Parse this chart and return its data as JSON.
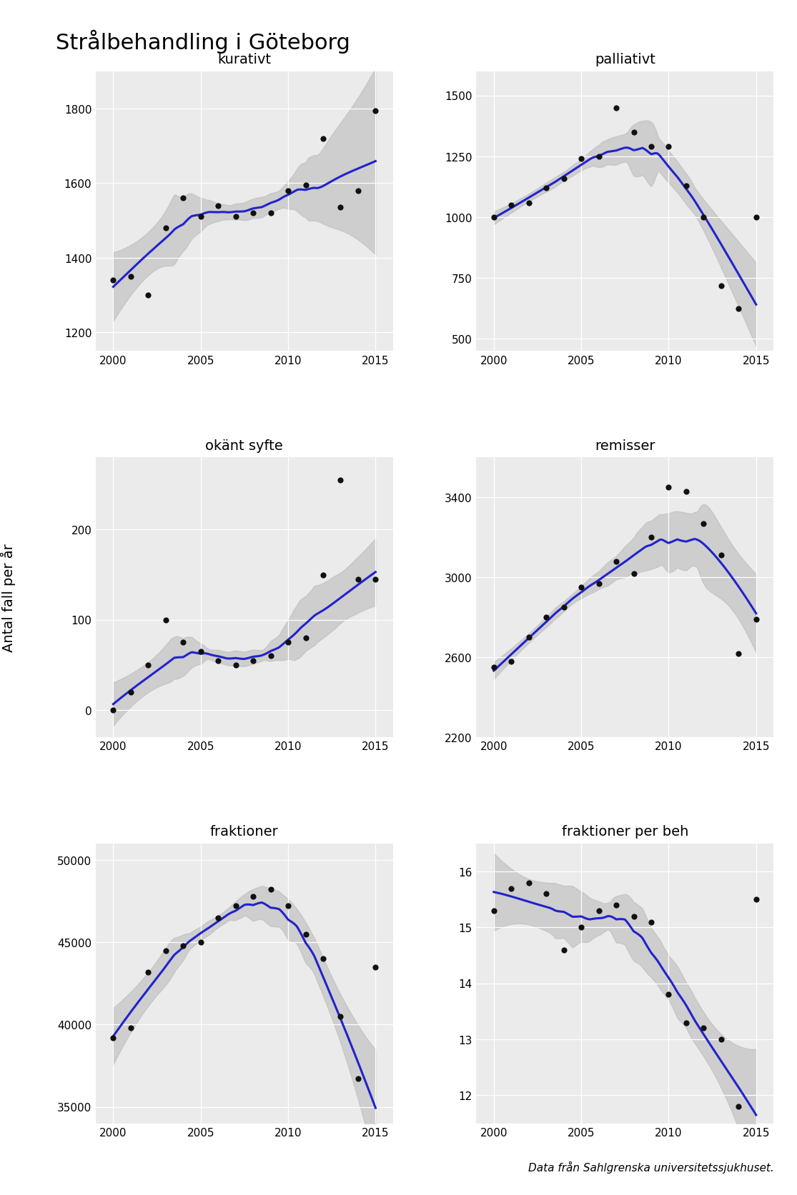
{
  "title": "Strålbehandling i Göteborg",
  "ylabel": "Antal fall per år",
  "footer": "Data från Sahlgrenska universitetssjukhuset.",
  "subplots": [
    {
      "title": "kurativt",
      "years": [
        2000,
        2001,
        2002,
        2003,
        2004,
        2005,
        2006,
        2007,
        2008,
        2009,
        2010,
        2011,
        2012,
        2013,
        2014,
        2015
      ],
      "values": [
        1340,
        1350,
        1300,
        1480,
        1560,
        1510,
        1540,
        1510,
        1520,
        1520,
        1580,
        1595,
        1720,
        1535,
        1580,
        1795
      ],
      "ylim": [
        1150,
        1900
      ],
      "yticks": [
        1200,
        1400,
        1600,
        1800
      ]
    },
    {
      "title": "palliativt",
      "years": [
        2000,
        2001,
        2002,
        2003,
        2004,
        2005,
        2006,
        2007,
        2008,
        2009,
        2010,
        2011,
        2012,
        2013,
        2014,
        2015
      ],
      "values": [
        1000,
        1050,
        1060,
        1120,
        1160,
        1240,
        1250,
        1450,
        1350,
        1290,
        1290,
        1130,
        1000,
        720,
        625,
        1000
      ],
      "ylim": [
        450,
        1600
      ],
      "yticks": [
        500,
        750,
        1000,
        1250,
        1500
      ]
    },
    {
      "title": "okänt syfte",
      "years": [
        2000,
        2001,
        2002,
        2003,
        2004,
        2005,
        2006,
        2007,
        2008,
        2009,
        2010,
        2011,
        2012,
        2013,
        2014,
        2015
      ],
      "values": [
        0,
        20,
        50,
        100,
        75,
        65,
        55,
        50,
        55,
        60,
        75,
        80,
        150,
        255,
        145,
        145
      ],
      "ylim": [
        -30,
        280
      ],
      "yticks": [
        0,
        100,
        200
      ]
    },
    {
      "title": "remisser",
      "years": [
        2000,
        2001,
        2002,
        2003,
        2004,
        2005,
        2006,
        2007,
        2008,
        2009,
        2010,
        2011,
        2012,
        2013,
        2014,
        2015
      ],
      "values": [
        2550,
        2580,
        2700,
        2800,
        2850,
        2950,
        2970,
        3080,
        3020,
        3200,
        3450,
        3430,
        3270,
        3110,
        2620,
        2790
      ],
      "ylim": [
        2200,
        3600
      ],
      "yticks": [
        2200,
        2600,
        3000,
        3400
      ]
    },
    {
      "title": "fraktioner",
      "years": [
        2000,
        2001,
        2002,
        2003,
        2004,
        2005,
        2006,
        2007,
        2008,
        2009,
        2010,
        2011,
        2012,
        2013,
        2014,
        2015
      ],
      "values": [
        39200,
        39800,
        43200,
        44500,
        44800,
        45000,
        46500,
        47200,
        47800,
        48200,
        47200,
        45500,
        44000,
        40500,
        36700,
        43500
      ],
      "ylim": [
        34000,
        51000
      ],
      "yticks": [
        35000,
        40000,
        45000,
        50000
      ]
    },
    {
      "title": "fraktioner per beh",
      "years": [
        2000,
        2001,
        2002,
        2003,
        2004,
        2005,
        2006,
        2007,
        2008,
        2009,
        2010,
        2011,
        2012,
        2013,
        2014,
        2015
      ],
      "values": [
        15.3,
        15.7,
        15.8,
        15.6,
        14.6,
        15.0,
        15.3,
        15.4,
        15.2,
        15.1,
        13.8,
        13.3,
        13.2,
        13.0,
        11.8,
        15.5
      ],
      "ylim": [
        11.5,
        16.5
      ],
      "yticks": [
        12,
        13,
        14,
        15,
        16
      ]
    }
  ],
  "line_color": "#2222CC",
  "shade_color": "#BBBBBB",
  "dot_color": "#111111",
  "grid_color": "#DDDDDD",
  "bg_color": "#FFFFFF",
  "xlim": [
    1999,
    2016
  ],
  "xticks": [
    2000,
    2005,
    2010,
    2015
  ]
}
